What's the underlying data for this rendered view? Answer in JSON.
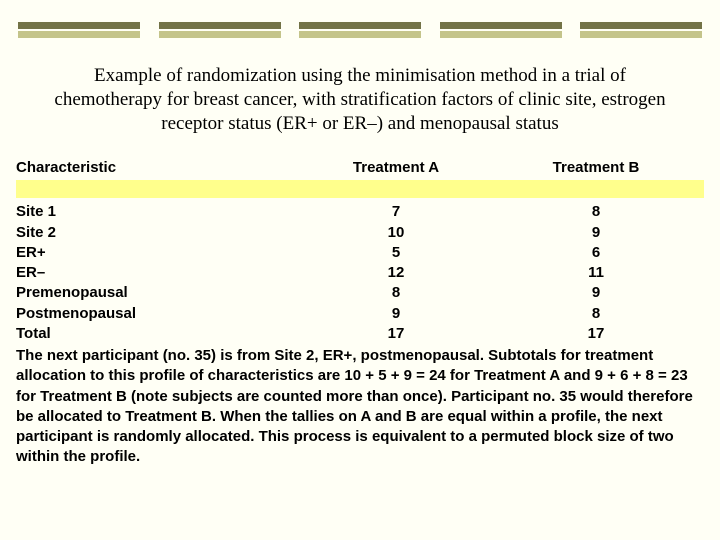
{
  "decor": {
    "bar_count": 5,
    "olive_color": "#737347",
    "khaki_color": "#c4c48a",
    "yellow_strip_color": "#ffff8c",
    "page_bg": "#fffff5"
  },
  "title": "Example of randomization using the minimisation method in a trial of chemotherapy for breast cancer, with stratification factors of clinic site, estrogen receptor status (ER+ or ER–) and menopausal status",
  "headers": {
    "characteristic": "Characteristic",
    "treatment_a": "Treatment A",
    "treatment_b": "Treatment B"
  },
  "rows": [
    {
      "label": "Site 1",
      "a": "7",
      "b": "8"
    },
    {
      "label": "Site 2",
      "a": "10",
      "b": "9"
    },
    {
      "label": "ER+",
      "a": "5",
      "b": "6"
    },
    {
      "label": "ER–",
      "a": "12",
      "b": "11"
    },
    {
      "label": "Premenopausal",
      "a": "8",
      "b": "9"
    },
    {
      "label": "Postmenopausal",
      "a": "9",
      "b": "8"
    },
    {
      "label": "Total",
      "a": "17",
      "b": "17"
    }
  ],
  "footnote": "The next participant (no. 35) is from Site 2, ER+, postmenopausal. Subtotals for treatment allocation to this profile of characteristics are 10 + 5 + 9 = 24 for Treatment A and 9 + 6 + 8 = 23 for Treatment B (note subjects are counted more than once). Participant no. 35 would therefore be allocated to Treatment B. When the tallies on A and B are equal within a profile, the next participant is randomly allocated. This process is equivalent to a permuted block size of two within the profile."
}
